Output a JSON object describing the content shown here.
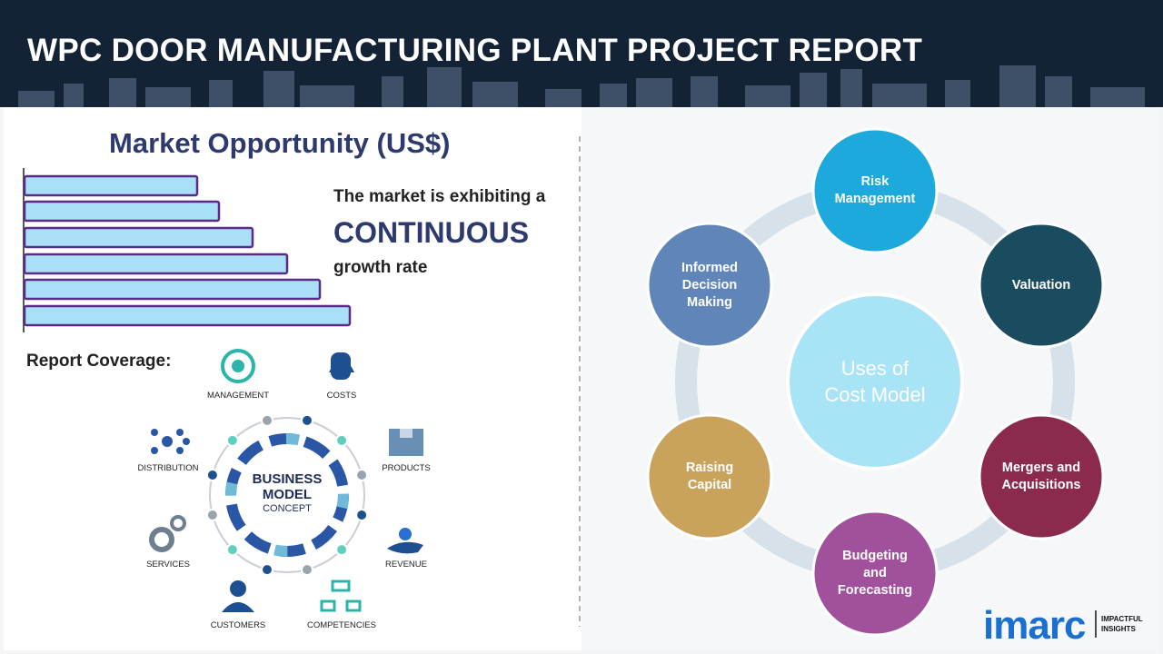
{
  "header": {
    "title": "WPC DOOR MANUFACTURING PLANT PROJECT REPORT"
  },
  "market": {
    "heading": "Market Opportunity (US$)",
    "text_before": "The market is exhibiting a",
    "emphasis": "CONTINUOUS",
    "text_after": "growth rate"
  },
  "coverage": {
    "label": "Report Coverage:",
    "center": [
      "BUSINESS",
      "MODEL",
      "CONCEPT"
    ],
    "items": [
      "MANAGEMENT",
      "COSTS",
      "DISTRIBUTION",
      "PRODUCTS",
      "SERVICES",
      "REVENUE",
      "CUSTOMERS",
      "COMPETENCIES"
    ]
  },
  "uses": {
    "center": [
      "Uses of",
      "Cost Model"
    ],
    "nodes": [
      {
        "lines": [
          "Risk",
          "Management"
        ]
      },
      {
        "lines": [
          "Valuation"
        ]
      },
      {
        "lines": [
          "Mergers and",
          "Acquisitions"
        ]
      },
      {
        "lines": [
          "Budgeting",
          "and",
          "Forecasting"
        ]
      },
      {
        "lines": [
          "Raising",
          "Capital"
        ]
      },
      {
        "lines": [
          "Informed",
          "Decision",
          "Making"
        ]
      }
    ]
  },
  "logo": {
    "brand": "imarc",
    "tagline": [
      "IMPACTFUL",
      "INSIGHTS"
    ]
  }
}
